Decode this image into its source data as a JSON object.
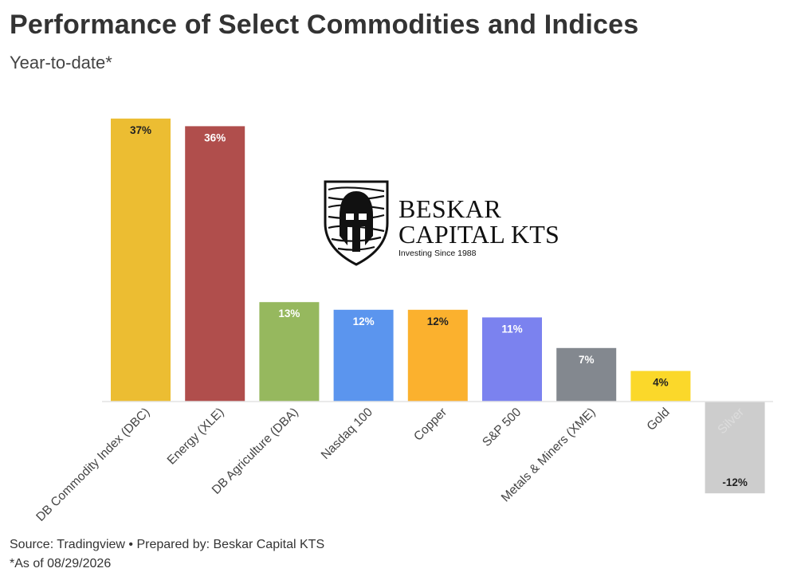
{
  "chart_data": {
    "type": "bar",
    "title": "Performance of Select Commodities and Indices",
    "subtitle": "Year-to-date*",
    "categories": [
      "DB Commodity Index (DBC)",
      "Energy (XLE)",
      "DB Agriculture (DBA)",
      "Nasdaq 100",
      "Copper",
      "S&P 500",
      "Metals & Miners (XME)",
      "Gold",
      "Silver"
    ],
    "values": [
      37,
      36,
      13,
      12,
      12,
      11,
      7,
      4,
      -12
    ],
    "data_labels": [
      "37%",
      "36%",
      "13%",
      "12%",
      "12%",
      "11%",
      "7%",
      "4%",
      "-12%"
    ],
    "colors": [
      "#ecbd32",
      "#b04e4c",
      "#96b85e",
      "#5b95ee",
      "#fbb12e",
      "#7b82ef",
      "#83888f",
      "#fbd82a",
      "#cdcdcd"
    ],
    "label_colors": [
      "#222222",
      "#ffffff",
      "#ffffff",
      "#ffffff",
      "#222222",
      "#ffffff",
      "#ffffff",
      "#222222",
      "#222222"
    ],
    "category_label_colors": [
      "#444444",
      "#444444",
      "#444444",
      "#444444",
      "#444444",
      "#444444",
      "#444444",
      "#444444",
      "#dddddd"
    ],
    "ylim": [
      -12,
      37
    ],
    "grid": false,
    "xlabel": "",
    "ylabel": ""
  },
  "logo": {
    "line1": "BESKAR",
    "line2": "CAPITAL KTS",
    "tagline": "Investing Since 1988"
  },
  "footer": {
    "source": "Source: Tradingview • Prepared by: Beskar Capital KTS",
    "asof": "*As of 08/29/2026"
  }
}
